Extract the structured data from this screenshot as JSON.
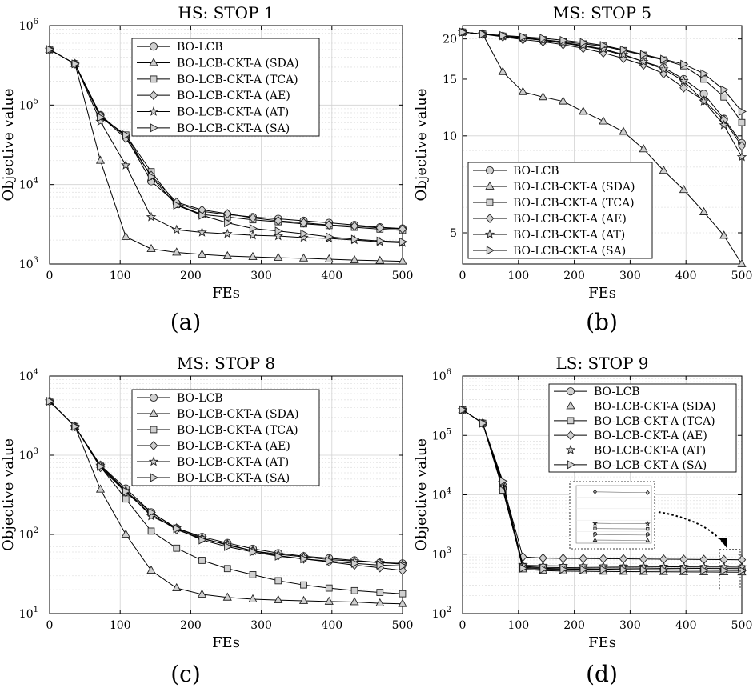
{
  "figure": {
    "captions": [
      "(a)",
      "(b)",
      "(c)",
      "(d)"
    ]
  },
  "series_styles": {
    "markers": [
      "circle",
      "triangle",
      "square",
      "diamond",
      "star",
      "triangle-right"
    ],
    "line_color": "#000000",
    "marker_stroke": "#222222",
    "marker_fill": "#d0d0d0",
    "grid_color": "#e3e3e3"
  },
  "chart_data": [
    {
      "type": "line",
      "title": "HS: STOP 1",
      "xlabel": "FEs",
      "ylabel": "Objective value",
      "yscale": "log",
      "xlim": [
        0,
        500
      ],
      "ylim": [
        1000,
        1000000
      ],
      "xticks": [
        "0",
        "100",
        "200",
        "300",
        "400",
        "500"
      ],
      "yticks": [
        {
          "base": "10",
          "exp": "3"
        },
        {
          "base": "10",
          "exp": "4"
        },
        {
          "base": "10",
          "exp": "5"
        },
        {
          "base": "10",
          "exp": "6"
        }
      ],
      "grid": true,
      "legend_position": "top-right",
      "x": [
        0,
        36,
        72,
        108,
        144,
        180,
        216,
        252,
        288,
        324,
        360,
        396,
        432,
        468,
        500
      ],
      "series": [
        {
          "name": "BO-LCB",
          "values": [
            500000,
            330000,
            75000,
            40000,
            11000,
            5800,
            4600,
            4200,
            3900,
            3700,
            3500,
            3300,
            3100,
            2900,
            2800
          ]
        },
        {
          "name": "BO-LCB-CKT-A (SDA)",
          "values": [
            500000,
            330000,
            20000,
            2200,
            1550,
            1400,
            1320,
            1260,
            1230,
            1200,
            1180,
            1150,
            1120,
            1100,
            1080
          ]
        },
        {
          "name": "BO-LCB-CKT-A (TCA)",
          "values": [
            500000,
            330000,
            72000,
            42000,
            14500,
            5600,
            4200,
            3900,
            3600,
            3400,
            3200,
            3050,
            2900,
            2750,
            2650
          ]
        },
        {
          "name": "BO-LCB-CKT-A (AE)",
          "values": [
            500000,
            330000,
            73000,
            38000,
            13000,
            6000,
            4800,
            4300,
            3800,
            3500,
            3300,
            3100,
            3000,
            2850,
            2750
          ]
        },
        {
          "name": "BO-LCB-CKT-A (AT)",
          "values": [
            500000,
            330000,
            62000,
            17500,
            3900,
            2700,
            2500,
            2400,
            2300,
            2250,
            2150,
            2100,
            2000,
            1900,
            1850
          ]
        },
        {
          "name": "BO-LCB-CKT-A (SA)",
          "values": [
            500000,
            330000,
            70000,
            42000,
            12500,
            5500,
            4100,
            3300,
            2800,
            2600,
            2400,
            2200,
            2050,
            1950,
            1900
          ]
        }
      ]
    },
    {
      "type": "line",
      "title": "MS: STOP 5",
      "xlabel": "FEs",
      "ylabel": "Objective value",
      "yscale": "log",
      "xlim": [
        0,
        500
      ],
      "ylim": [
        4,
        22
      ],
      "xticks": [
        "0",
        "100",
        "200",
        "300",
        "400",
        "500"
      ],
      "yticks": [
        {
          "base": "5",
          "exp": ""
        },
        {
          "base": "10",
          "exp": ""
        },
        {
          "base": "15",
          "exp": ""
        },
        {
          "base": "20",
          "exp": ""
        }
      ],
      "grid": true,
      "legend_position": "bottom-left",
      "x": [
        0,
        36,
        72,
        108,
        144,
        180,
        216,
        252,
        288,
        324,
        360,
        396,
        432,
        468,
        500
      ],
      "series": [
        {
          "name": "BO-LCB",
          "values": [
            21,
            20.7,
            20.4,
            20.1,
            19.8,
            19.4,
            19.0,
            18.5,
            17.8,
            17.0,
            16.3,
            15.0,
            13.5,
            11.3,
            9.5
          ]
        },
        {
          "name": "BO-LCB-CKT-A (SDA)",
          "values": [
            21,
            20.7,
            15.8,
            13.7,
            13.2,
            12.8,
            11.9,
            11.1,
            10.3,
            9.1,
            7.8,
            6.8,
            5.8,
            4.9,
            4.0
          ]
        },
        {
          "name": "BO-LCB-CKT-A (TCA)",
          "values": [
            21,
            20.7,
            20.4,
            20.2,
            19.9,
            19.6,
            19.3,
            19.0,
            18.4,
            17.8,
            17.2,
            16.5,
            15.0,
            13.2,
            11.0
          ]
        },
        {
          "name": "BO-LCB-CKT-A (AE)",
          "values": [
            21,
            20.7,
            20.3,
            19.9,
            19.6,
            19.2,
            18.7,
            18.1,
            17.4,
            16.6,
            15.6,
            14.1,
            12.9,
            11.2,
            9.3
          ]
        },
        {
          "name": "BO-LCB-CKT-A (AT)",
          "values": [
            21,
            20.7,
            20.4,
            20.1,
            19.8,
            19.5,
            19.1,
            18.6,
            17.9,
            17.0,
            16.1,
            14.8,
            12.8,
            10.8,
            8.6
          ]
        },
        {
          "name": "BO-LCB-CKT-A (SA)",
          "values": [
            21,
            20.7,
            20.5,
            20.3,
            20.1,
            19.8,
            19.5,
            19.1,
            18.5,
            17.9,
            17.3,
            16.7,
            15.6,
            13.9,
            11.9
          ]
        }
      ]
    },
    {
      "type": "line",
      "title": "MS: STOP 8",
      "xlabel": "FEs",
      "ylabel": "Objective value",
      "yscale": "log",
      "xlim": [
        0,
        500
      ],
      "ylim": [
        10,
        10000
      ],
      "xticks": [
        "0",
        "100",
        "200",
        "300",
        "400",
        "500"
      ],
      "yticks": [
        {
          "base": "10",
          "exp": "1"
        },
        {
          "base": "10",
          "exp": "2"
        },
        {
          "base": "10",
          "exp": "3"
        },
        {
          "base": "10",
          "exp": "4"
        }
      ],
      "grid": true,
      "legend_position": "top-right",
      "x": [
        0,
        36,
        72,
        108,
        144,
        180,
        216,
        252,
        288,
        324,
        360,
        396,
        432,
        468,
        500
      ],
      "series": [
        {
          "name": "BO-LCB",
          "values": [
            4800,
            2300,
            750,
            380,
            190,
            120,
            93,
            78,
            66,
            58,
            53,
            50,
            47,
            44,
            43
          ]
        },
        {
          "name": "BO-LCB-CKT-A (SDA)",
          "values": [
            4800,
            2300,
            370,
            100,
            35,
            21,
            17.5,
            16,
            15.2,
            14.8,
            14.5,
            14.2,
            14,
            13.5,
            13.3
          ]
        },
        {
          "name": "BO-LCB-CKT-A (TCA)",
          "values": [
            4800,
            2300,
            720,
            280,
            110,
            67,
            47,
            37,
            31,
            26,
            23,
            21,
            19.5,
            18.5,
            17.8
          ]
        },
        {
          "name": "BO-LCB-CKT-A (AE)",
          "values": [
            4800,
            2300,
            700,
            340,
            180,
            115,
            88,
            75,
            62,
            54,
            49,
            45,
            41,
            38,
            35
          ]
        },
        {
          "name": "BO-LCB-CKT-A (AT)",
          "values": [
            4800,
            2300,
            740,
            360,
            170,
            120,
            90,
            73,
            62,
            56,
            52,
            48,
            46,
            44,
            42
          ]
        },
        {
          "name": "BO-LCB-CKT-A (SA)",
          "values": [
            4800,
            2300,
            720,
            350,
            190,
            118,
            85,
            70,
            60,
            53,
            49,
            46,
            43,
            41,
            40
          ]
        }
      ]
    },
    {
      "type": "line",
      "title": "LS: STOP 9",
      "xlabel": "FEs",
      "ylabel": "Objective value",
      "yscale": "log",
      "xlim": [
        0,
        500
      ],
      "ylim": [
        100,
        1000000
      ],
      "xticks": [
        "0",
        "100",
        "200",
        "300",
        "400",
        "500"
      ],
      "yticks": [
        {
          "base": "10",
          "exp": "2"
        },
        {
          "base": "10",
          "exp": "3"
        },
        {
          "base": "10",
          "exp": "4"
        },
        {
          "base": "10",
          "exp": "5"
        },
        {
          "base": "10",
          "exp": "6"
        }
      ],
      "grid": true,
      "legend_position": "top-right",
      "annotation": "zoom-inset of FEs 460-500",
      "x": [
        0,
        36,
        72,
        108,
        144,
        180,
        216,
        252,
        288,
        324,
        360,
        396,
        432,
        468,
        500
      ],
      "series": [
        {
          "name": "BO-LCB",
          "values": [
            270000,
            160000,
            13000,
            600,
            580,
            570,
            565,
            560,
            555,
            550,
            548,
            545,
            542,
            540,
            538
          ]
        },
        {
          "name": "BO-LCB-CKT-A (SDA)",
          "values": [
            270000,
            160000,
            14000,
            560,
            530,
            520,
            515,
            512,
            510,
            508,
            506,
            504,
            502,
            500,
            498
          ]
        },
        {
          "name": "BO-LCB-CKT-A (TCA)",
          "values": [
            270000,
            160000,
            12000,
            620,
            600,
            595,
            590,
            588,
            585,
            583,
            580,
            578,
            576,
            574,
            572
          ]
        },
        {
          "name": "BO-LCB-CKT-A (AE)",
          "values": [
            270000,
            160000,
            15000,
            900,
            860,
            850,
            845,
            840,
            835,
            830,
            825,
            820,
            815,
            810,
            805
          ]
        },
        {
          "name": "BO-LCB-CKT-A (AT)",
          "values": [
            270000,
            160000,
            16000,
            650,
            640,
            635,
            630,
            625,
            620,
            618,
            615,
            612,
            610,
            608,
            605
          ]
        },
        {
          "name": "BO-LCB-CKT-A (SA)",
          "values": [
            270000,
            160000,
            17000,
            580,
            560,
            555,
            550,
            548,
            545,
            542,
            540,
            538,
            536,
            534,
            532
          ]
        }
      ]
    }
  ]
}
